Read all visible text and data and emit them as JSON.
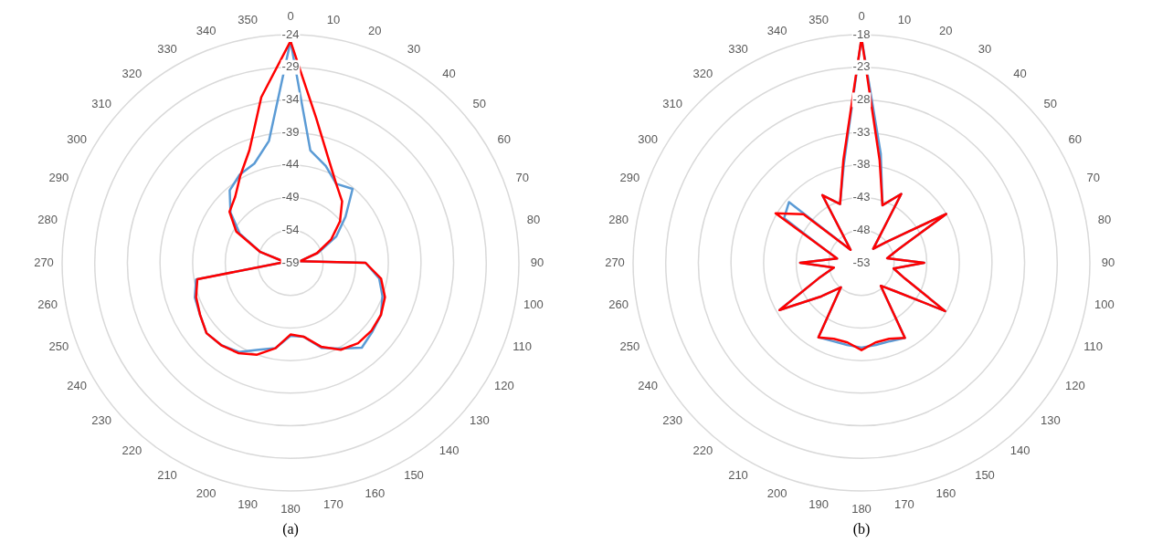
{
  "chart_data": [
    {
      "type": "radar",
      "title": "(a)",
      "categories": [
        "0",
        "10",
        "20",
        "30",
        "40",
        "50",
        "60",
        "70",
        "80",
        "90",
        "100",
        "110",
        "120",
        "130",
        "140",
        "150",
        "160",
        "170",
        "180",
        "190",
        "200",
        "210",
        "220",
        "230",
        "240",
        "250",
        "260",
        "270",
        "280",
        "290",
        "300",
        "310",
        "320",
        "330",
        "340",
        "350"
      ],
      "ylim": [
        -59,
        -24
      ],
      "yticks": [
        -59,
        -54,
        -49,
        -44,
        -39,
        -34,
        -29,
        -24
      ],
      "grid": true,
      "legend": false,
      "marker": "none",
      "series": [
        {
          "color": "#5b9bd5",
          "values": [
            -25,
            -41.5,
            -43.2,
            -45,
            -44.2,
            -48,
            -50.9,
            -54.5,
            -57.5,
            -47.5,
            -45.2,
            -44,
            -43,
            -42.6,
            -42,
            -43.8,
            -45.1,
            -47.5,
            -47.8,
            -45.7,
            -44.8,
            -43.2,
            -42.5,
            -42.2,
            -43,
            -43.4,
            -44.3,
            -57.5,
            -58,
            -54,
            -50,
            -47,
            -44.5,
            -43.4,
            -42.8,
            -40
          ]
        },
        {
          "color": "#ff0000",
          "values": [
            -25,
            -36.4,
            -42,
            -45,
            -46.7,
            -49.1,
            -51.8,
            -54.7,
            -57.5,
            -47.5,
            -44.9,
            -43.6,
            -43,
            -42.8,
            -42.9,
            -43.6,
            -45.3,
            -47.5,
            -48,
            -45.7,
            -44,
            -43,
            -42.5,
            -42.2,
            -43,
            -43.6,
            -44.5,
            -57.5,
            -58,
            -54,
            -49.4,
            -46.8,
            -45.8,
            -43.6,
            -40.6,
            -33.2
          ]
        }
      ]
    },
    {
      "type": "radar",
      "title": "(b)",
      "categories": [
        "0",
        "10",
        "20",
        "30",
        "40",
        "50",
        "60",
        "70",
        "80",
        "90",
        "100",
        "110",
        "120",
        "130",
        "140",
        "150",
        "160",
        "170",
        "180",
        "190",
        "200",
        "210",
        "220",
        "230",
        "240",
        "250",
        "260",
        "270",
        "280",
        "290",
        "300",
        "310",
        "320",
        "330",
        "340",
        "350"
      ],
      "ylim": [
        -53,
        -18
      ],
      "yticks": [
        -53,
        -48,
        -43,
        -38,
        -33,
        -28,
        -23,
        -18
      ],
      "grid": true,
      "legend": false,
      "marker": "none",
      "series": [
        {
          "color": "#5b9bd5",
          "values": [
            -18.5,
            -36,
            -43.6,
            -40.8,
            -50.2,
            -48,
            -38,
            -47,
            -49,
            -43.4,
            -48,
            -45.9,
            -38.2,
            -46.2,
            -48.4,
            -39.7,
            -40.2,
            -40.2,
            -40,
            -40.2,
            -40.2,
            -39.8,
            -48.1,
            -45,
            -38.5,
            -46,
            -48.7,
            -43.6,
            -49.2,
            -47,
            -39.3,
            -38.5,
            -50.4,
            -41,
            -43.4,
            -37.5
          ]
        },
        {
          "color": "#ff0000",
          "values": [
            -18.5,
            -37,
            -43.6,
            -40.8,
            -50.2,
            -48,
            -38,
            -47,
            -49,
            -43.4,
            -48,
            -45.9,
            -38.2,
            -46.2,
            -48.4,
            -39.7,
            -40.6,
            -40.6,
            -39.6,
            -40.6,
            -40.6,
            -39.8,
            -48.1,
            -45,
            -38.5,
            -46,
            -48.7,
            -43.6,
            -49.2,
            -47,
            -37.8,
            -41.4,
            -50.4,
            -41,
            -43.4,
            -37
          ]
        }
      ]
    }
  ]
}
